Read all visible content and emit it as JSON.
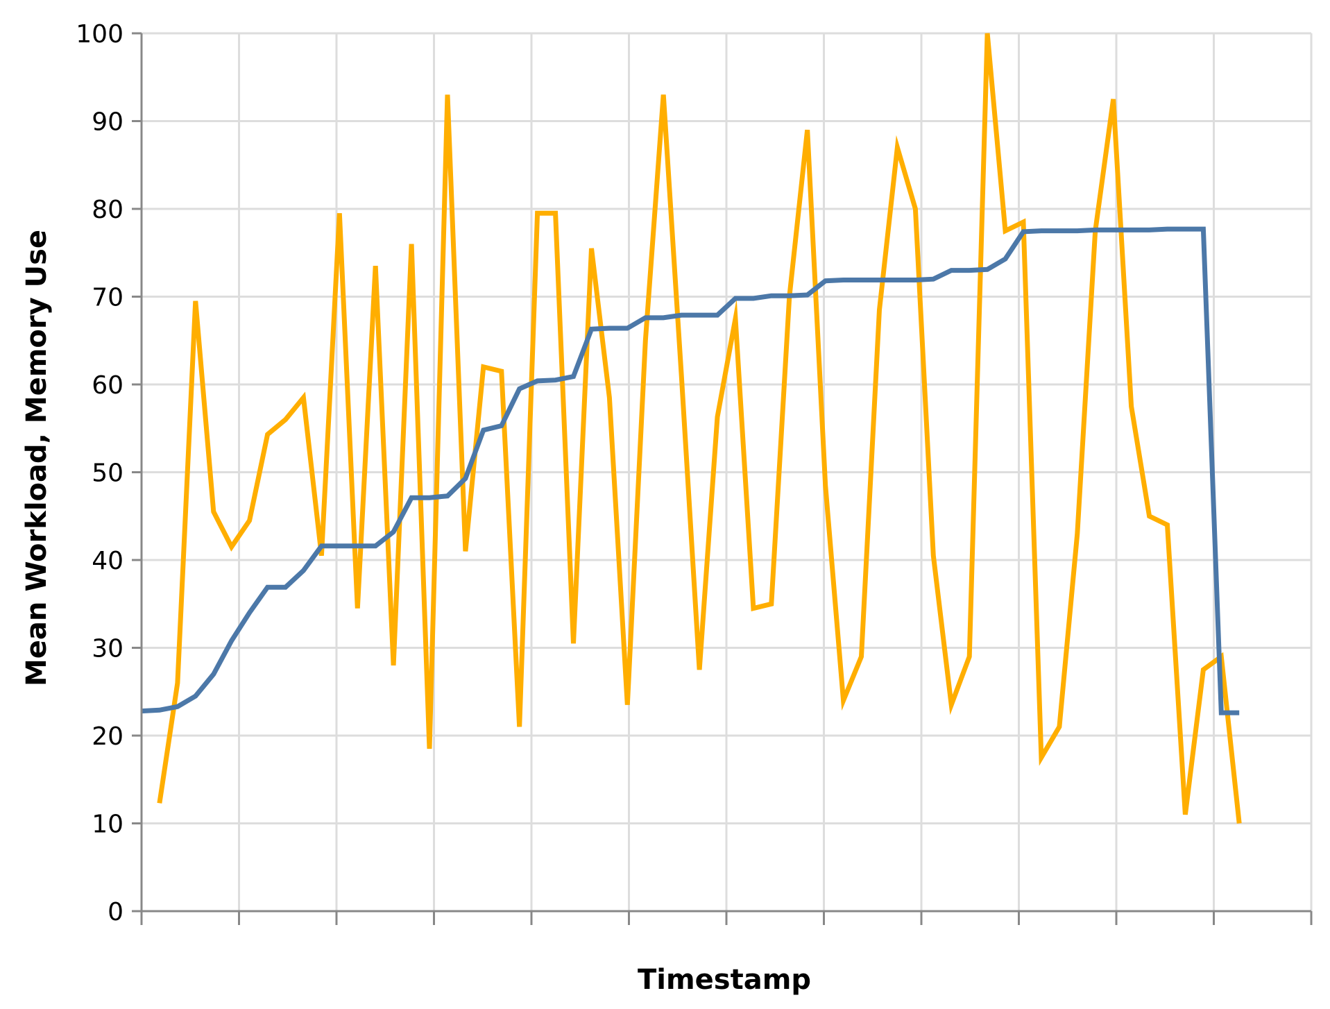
{
  "chart_data": {
    "type": "line",
    "title": "",
    "xlabel": "Timestamp",
    "ylabel": "Mean Workload, Memory Use",
    "ylim": [
      0,
      100
    ],
    "yticks": [
      0,
      10,
      20,
      30,
      40,
      50,
      60,
      70,
      80,
      90,
      100
    ],
    "x_tick_count": 13,
    "grid": true,
    "x": [
      0,
      1,
      2,
      3,
      4,
      5,
      6,
      7,
      8,
      9,
      10,
      11,
      12,
      13,
      14,
      15,
      16,
      17,
      18,
      19,
      20,
      21,
      22,
      23,
      24,
      25,
      26,
      27,
      28,
      29,
      30,
      31,
      32,
      33,
      34,
      35,
      36,
      37,
      38,
      39,
      40,
      41,
      42,
      43,
      44,
      45,
      46,
      47,
      48,
      49,
      50,
      51,
      52,
      53,
      54,
      55,
      56,
      57,
      58,
      59,
      60,
      61
    ],
    "xlim": [
      0,
      65
    ],
    "series": [
      {
        "color": "#ffae00",
        "values": [
          null,
          12.3,
          26.0,
          69.5,
          45.5,
          41.5,
          44.5,
          54.3,
          56.0,
          58.5,
          40.5,
          79.5,
          34.5,
          73.5,
          28.0,
          76.0,
          18.5,
          93.0,
          41.0,
          62.0,
          61.5,
          21.0,
          79.5,
          79.5,
          30.5,
          75.5,
          58.5,
          23.5,
          65.0,
          93.0,
          61.0,
          27.5,
          56.3,
          67.5,
          34.5,
          35.0,
          70.0,
          89.0,
          48.5,
          24.0,
          29.0,
          68.5,
          87.0,
          80.0,
          40.5,
          23.5,
          29.0,
          100.0,
          77.5,
          78.5,
          17.5,
          21.0,
          43.0,
          77.5,
          92.5,
          57.5,
          45.0,
          44.0,
          11.0,
          27.5,
          29.0,
          10.0
        ]
      },
      {
        "color": "#4c78a8",
        "values": [
          22.8,
          22.9,
          23.3,
          24.5,
          27.0,
          30.8,
          34.0,
          36.9,
          36.9,
          38.8,
          41.6,
          41.6,
          41.6,
          41.6,
          43.2,
          47.1,
          47.1,
          47.3,
          49.3,
          54.8,
          55.3,
          59.5,
          60.4,
          60.5,
          60.9,
          66.3,
          66.4,
          66.4,
          67.6,
          67.6,
          67.9,
          67.9,
          67.9,
          69.8,
          69.8,
          70.1,
          70.1,
          70.2,
          71.8,
          71.9,
          71.9,
          71.9,
          71.9,
          71.9,
          72.0,
          73.0,
          73.0,
          73.1,
          74.3,
          77.4,
          77.5,
          77.5,
          77.5,
          77.6,
          77.6,
          77.6,
          77.6,
          77.7,
          77.7,
          77.7,
          22.6,
          22.6
        ]
      }
    ]
  }
}
